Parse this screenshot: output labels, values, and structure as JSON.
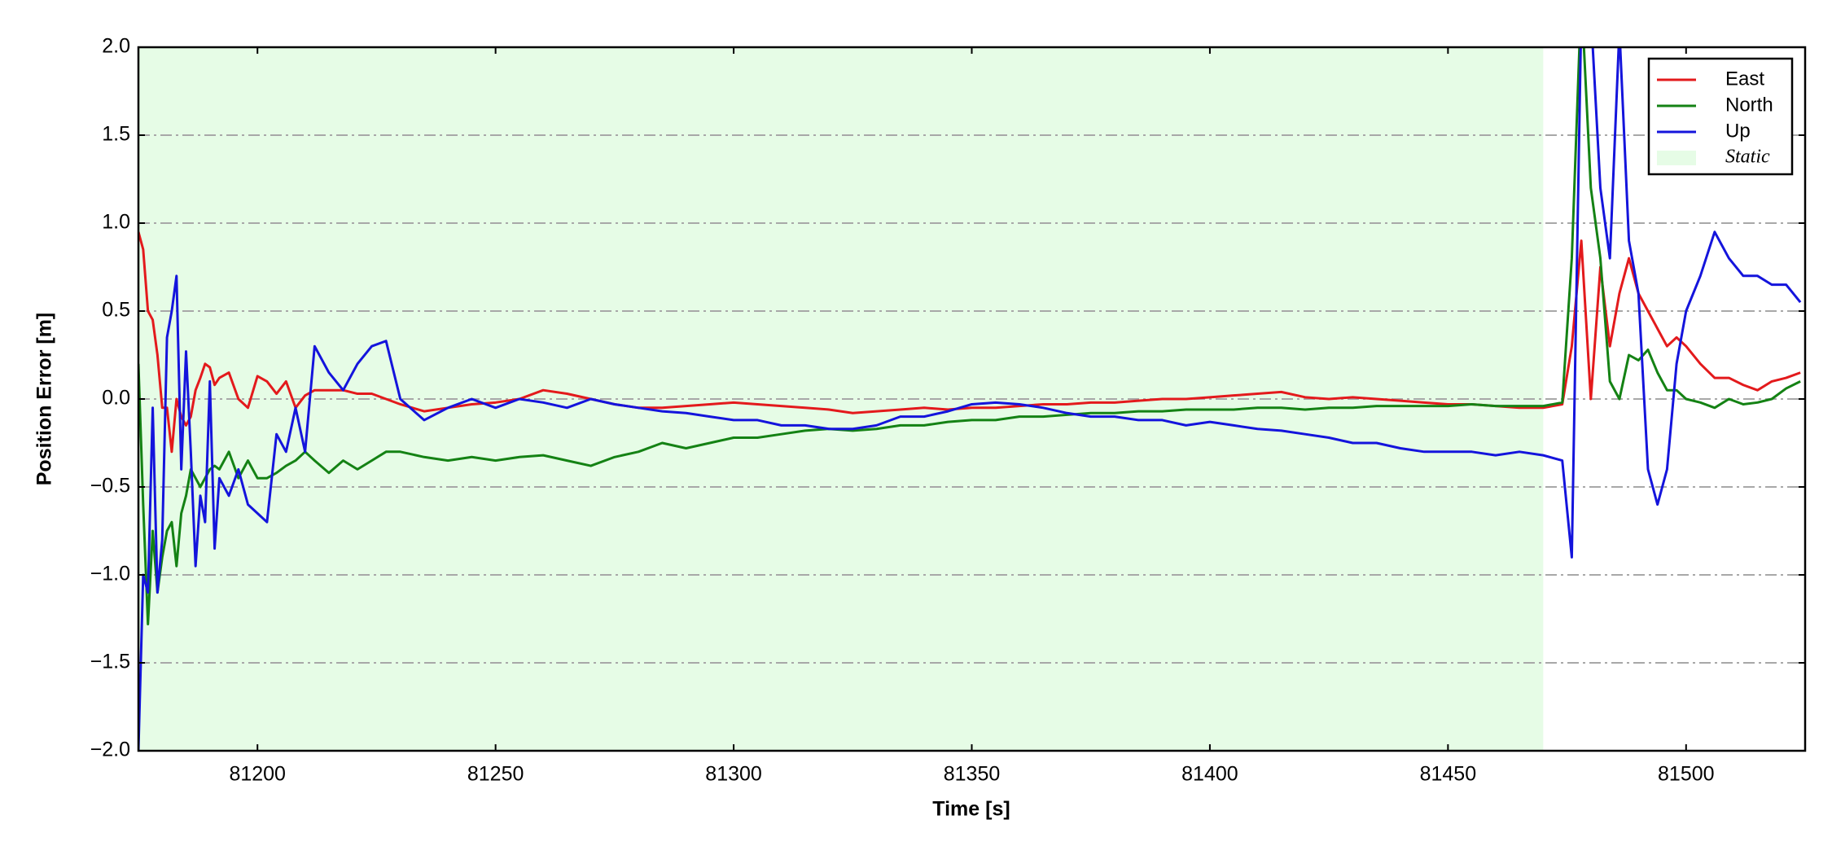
{
  "chart_data": {
    "type": "line",
    "xlabel": "Time [s]",
    "ylabel": "Position Error [m]",
    "xlim": [
      81175,
      81525
    ],
    "ylim": [
      -2,
      2
    ],
    "xticks": [
      81200,
      81250,
      81300,
      81350,
      81400,
      81450,
      81500
    ],
    "yticks": [
      {
        "value": -2,
        "label": "−2.0"
      },
      {
        "value": -1.5,
        "label": "−1.5"
      },
      {
        "value": -1,
        "label": "−1.0"
      },
      {
        "value": -0.5,
        "label": "−0.5"
      },
      {
        "value": 0,
        "label": "0.0"
      },
      {
        "value": 0.5,
        "label": "0.5"
      },
      {
        "value": 1,
        "label": "1.0"
      },
      {
        "value": 1.5,
        "label": "1.5"
      },
      {
        "value": 2,
        "label": "2.0"
      }
    ],
    "grid": true,
    "legend": "upper right",
    "regions": [
      {
        "label": "Static",
        "color": "#e6fce6",
        "x": [
          81175,
          81470
        ]
      }
    ],
    "x": [
      81175,
      81176,
      81177,
      81178,
      81179,
      81180,
      81181,
      81182,
      81183,
      81184,
      81185,
      81186,
      81187,
      81188,
      81189,
      81190,
      81191,
      81192,
      81194,
      81196,
      81198,
      81200,
      81202,
      81204,
      81206,
      81208,
      81210,
      81212,
      81215,
      81218,
      81221,
      81224,
      81227,
      81230,
      81235,
      81240,
      81245,
      81250,
      81255,
      81260,
      81265,
      81270,
      81275,
      81280,
      81285,
      81290,
      81295,
      81300,
      81305,
      81310,
      81315,
      81320,
      81325,
      81330,
      81335,
      81340,
      81345,
      81350,
      81355,
      81360,
      81365,
      81370,
      81375,
      81380,
      81385,
      81390,
      81395,
      81400,
      81405,
      81410,
      81415,
      81420,
      81425,
      81430,
      81435,
      81440,
      81445,
      81450,
      81455,
      81460,
      81465,
      81470,
      81474,
      81476,
      81478,
      81480,
      81482,
      81484,
      81486,
      81488,
      81490,
      81492,
      81494,
      81496,
      81498,
      81500,
      81503,
      81506,
      81509,
      81512,
      81515,
      81518,
      81521,
      81524
    ],
    "series": [
      {
        "name": "East",
        "color": "#e31a1c",
        "values": [
          0.95,
          0.85,
          0.5,
          0.45,
          0.25,
          -0.05,
          -0.05,
          -0.3,
          0.0,
          -0.1,
          -0.15,
          -0.1,
          0.05,
          0.12,
          0.2,
          0.18,
          0.08,
          0.12,
          0.15,
          0.0,
          -0.05,
          0.13,
          0.1,
          0.03,
          0.1,
          -0.05,
          0.02,
          0.05,
          0.05,
          0.05,
          0.03,
          0.03,
          0.0,
          -0.03,
          -0.07,
          -0.05,
          -0.03,
          -0.02,
          0.0,
          0.05,
          0.03,
          0.0,
          -0.03,
          -0.05,
          -0.05,
          -0.04,
          -0.03,
          -0.02,
          -0.03,
          -0.04,
          -0.05,
          -0.06,
          -0.08,
          -0.07,
          -0.06,
          -0.05,
          -0.06,
          -0.05,
          -0.05,
          -0.04,
          -0.03,
          -0.03,
          -0.02,
          -0.02,
          -0.01,
          0.0,
          0.0,
          0.01,
          0.02,
          0.03,
          0.04,
          0.01,
          0.0,
          0.01,
          0.0,
          -0.01,
          -0.02,
          -0.03,
          -0.03,
          -0.04,
          -0.05,
          -0.05,
          -0.03,
          0.3,
          0.9,
          0.0,
          0.75,
          0.3,
          0.6,
          0.8,
          0.6,
          0.5,
          0.4,
          0.3,
          0.35,
          0.3,
          0.2,
          0.12,
          0.12,
          0.08,
          0.05,
          0.1,
          0.12,
          0.15
        ]
      },
      {
        "name": "North",
        "color": "#148214",
        "values": [
          0.2,
          -0.6,
          -1.28,
          -0.75,
          -1.1,
          -0.9,
          -0.75,
          -0.7,
          -0.95,
          -0.65,
          -0.55,
          -0.4,
          -0.45,
          -0.5,
          -0.45,
          -0.4,
          -0.38,
          -0.4,
          -0.3,
          -0.45,
          -0.35,
          -0.45,
          -0.45,
          -0.42,
          -0.38,
          -0.35,
          -0.3,
          -0.35,
          -0.42,
          -0.35,
          -0.4,
          -0.35,
          -0.3,
          -0.3,
          -0.33,
          -0.35,
          -0.33,
          -0.35,
          -0.33,
          -0.32,
          -0.35,
          -0.38,
          -0.33,
          -0.3,
          -0.25,
          -0.28,
          -0.25,
          -0.22,
          -0.22,
          -0.2,
          -0.18,
          -0.17,
          -0.18,
          -0.17,
          -0.15,
          -0.15,
          -0.13,
          -0.12,
          -0.12,
          -0.1,
          -0.1,
          -0.09,
          -0.08,
          -0.08,
          -0.07,
          -0.07,
          -0.06,
          -0.06,
          -0.06,
          -0.05,
          -0.05,
          -0.06,
          -0.05,
          -0.05,
          -0.04,
          -0.04,
          -0.04,
          -0.04,
          -0.03,
          -0.04,
          -0.04,
          -0.04,
          -0.02,
          0.8,
          2.3,
          1.2,
          0.8,
          0.1,
          0.0,
          0.25,
          0.22,
          0.28,
          0.15,
          0.05,
          0.05,
          0.0,
          -0.02,
          -0.05,
          0.0,
          -0.03,
          -0.02,
          0.0,
          0.06,
          0.1
        ]
      },
      {
        "name": "Up",
        "color": "#1414dc",
        "values": [
          -2.0,
          -1.0,
          -1.1,
          -0.05,
          -1.1,
          -0.8,
          0.35,
          0.5,
          0.7,
          -0.4,
          0.27,
          -0.3,
          -0.95,
          -0.55,
          -0.7,
          0.1,
          -0.85,
          -0.45,
          -0.55,
          -0.4,
          -0.6,
          -0.65,
          -0.7,
          -0.2,
          -0.3,
          -0.05,
          -0.3,
          0.3,
          0.15,
          0.05,
          0.2,
          0.3,
          0.33,
          0.0,
          -0.12,
          -0.05,
          0.0,
          -0.05,
          0.0,
          -0.02,
          -0.05,
          0.0,
          -0.03,
          -0.05,
          -0.07,
          -0.08,
          -0.1,
          -0.12,
          -0.12,
          -0.15,
          -0.15,
          -0.17,
          -0.17,
          -0.15,
          -0.1,
          -0.1,
          -0.07,
          -0.03,
          -0.02,
          -0.03,
          -0.05,
          -0.08,
          -0.1,
          -0.1,
          -0.12,
          -0.12,
          -0.15,
          -0.13,
          -0.15,
          -0.17,
          -0.18,
          -0.2,
          -0.22,
          -0.25,
          -0.25,
          -0.28,
          -0.3,
          -0.3,
          -0.3,
          -0.32,
          -0.3,
          -0.32,
          -0.35,
          -0.9,
          2.2,
          2.2,
          1.2,
          0.8,
          2.1,
          0.9,
          0.6,
          -0.4,
          -0.6,
          -0.4,
          0.2,
          0.5,
          0.7,
          0.95,
          0.8,
          0.7,
          0.7,
          0.65,
          0.65,
          0.55
        ]
      }
    ]
  }
}
